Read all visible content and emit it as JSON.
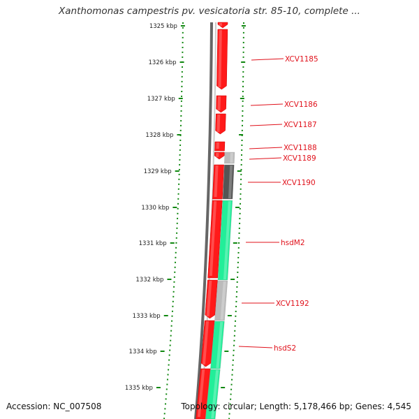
{
  "title": "Xanthomonas campestris pv. vesicatoria str. 85-10, complete ...",
  "accession": "Accession: NC_007508",
  "topology": "Topology: circular; Length: 5,178,466 bp; Genes: 4,545",
  "ticks": [
    "1325 kbp",
    "1326 kbp",
    "1327 kbp",
    "1328 kbp",
    "1329 kbp",
    "1330 kbp",
    "1331 kbp",
    "1332 kbp",
    "1333 kbp",
    "1334 kbp",
    "1335 kbp"
  ],
  "gene_labels": [
    "XCV1185",
    "XCV1186",
    "XCV1187",
    "XCV1188",
    "XCV1189",
    "XCV1190",
    "hsdM2",
    "XCV1192",
    "hsdS2"
  ],
  "colors": {
    "forward_cds": "#ff1a1a",
    "reverse_cds": "#22ee99",
    "gray_cds": "#bbbbbb",
    "dark_cds": "#555555",
    "label": "#e0101a",
    "tick": "#118811"
  }
}
